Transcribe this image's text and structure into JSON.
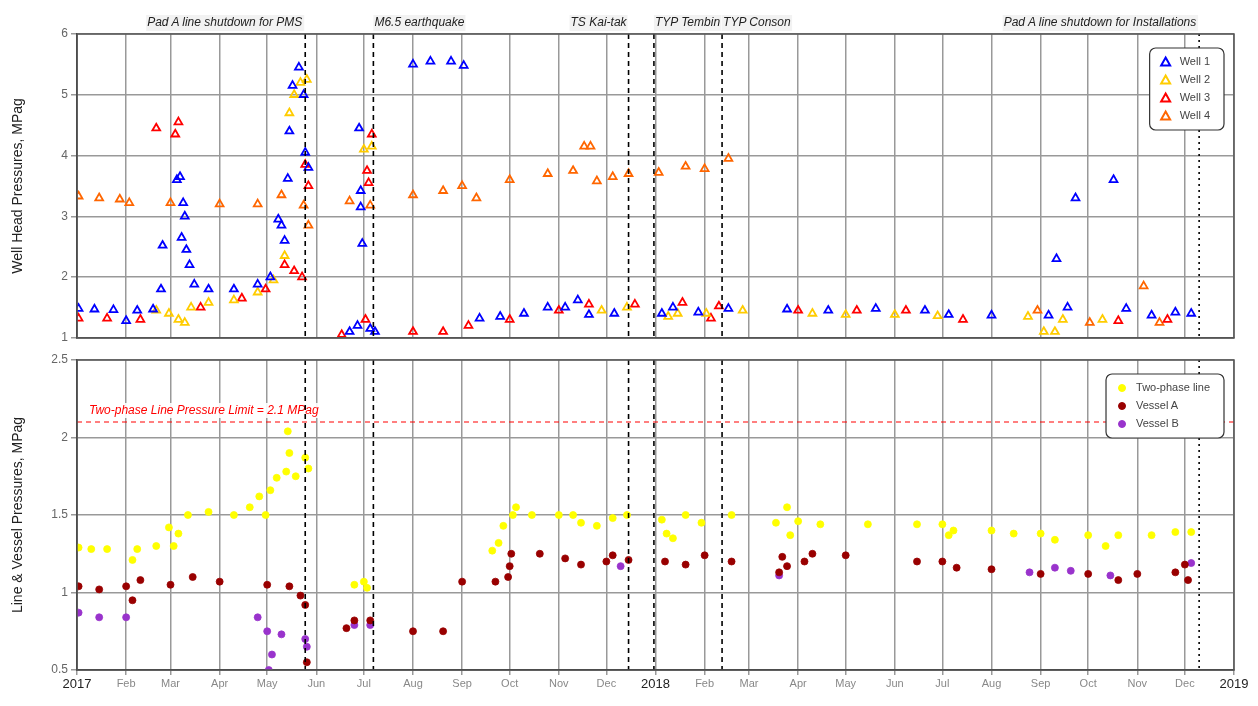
{
  "chart_data": [
    {
      "type": "scatter",
      "ylabel": "Well Head Pressures, MPag",
      "xlim": [
        "2017",
        "2019"
      ],
      "xticks": [
        {
          "value": "2017",
          "label": null
        },
        {
          "value": "2017-02",
          "label": null
        },
        {
          "value": "2017-03",
          "label": null
        },
        {
          "value": "2017-04",
          "label": null
        },
        {
          "value": "2017-05",
          "label": null
        },
        {
          "value": "2017-06",
          "label": null
        },
        {
          "value": "2017-07",
          "label": null
        },
        {
          "value": "2017-08",
          "label": null
        },
        {
          "value": "2017-09",
          "label": null
        },
        {
          "value": "2017-10",
          "label": null
        },
        {
          "value": "2017-11",
          "label": null
        },
        {
          "value": "2017-12",
          "label": null
        },
        {
          "value": "2018",
          "label": null
        },
        {
          "value": "2018-02",
          "label": null
        },
        {
          "value": "2018-03",
          "label": null
        },
        {
          "value": "2018-04",
          "label": null
        },
        {
          "value": "2018-05",
          "label": null
        },
        {
          "value": "2018-06",
          "label": null
        },
        {
          "value": "2018-07",
          "label": null
        },
        {
          "value": "2018-08",
          "label": null
        },
        {
          "value": "2018-09",
          "label": null
        },
        {
          "value": "2018-10",
          "label": null
        },
        {
          "value": "2018-11",
          "label": null
        },
        {
          "value": "2018-12",
          "label": null
        },
        {
          "value": "2019",
          "label": null
        }
      ],
      "ylim": [
        1,
        6
      ],
      "yticks": [
        1,
        2,
        3,
        4,
        5,
        6
      ],
      "tick_labels": "y",
      "grid": true,
      "legend": "top right",
      "marker": "triangle",
      "ref_lines": [
        {
          "axis": "x",
          "value": "2017-05-25",
          "label": "Pad A line shutdown for PMS",
          "line_style": "dashed",
          "color": "#000000"
        },
        {
          "axis": "x",
          "value": "2017-07-07",
          "label": "M6.5 earthquake",
          "line_style": "dashed",
          "color": "#000000"
        },
        {
          "axis": "x",
          "value": "2017-12-15",
          "label": "TS Kai-tak",
          "line_style": "dashed",
          "color": "#000000"
        },
        {
          "axis": "x",
          "value": "2017-12-31",
          "label": "TYP Tembin",
          "line_style": "dashed",
          "color": "#000000"
        },
        {
          "axis": "x",
          "value": "2018-02-12",
          "label": "TYP Conson",
          "line_style": "dashed",
          "color": "#000000"
        },
        {
          "axis": "x",
          "value": "2018-12-10",
          "label": "Pad A line shutdown for Installations",
          "line_style": "dotted",
          "color": "#000000"
        }
      ],
      "series": [
        {
          "name": "Well 1",
          "color": "#0000ff",
          "x": [
            "2017-01-02",
            "2017-01-12",
            "2017-01-24",
            "2017-02-01",
            "2017-02-08",
            "2017-02-18",
            "2017-02-23",
            "2017-02-24",
            "2017-03-05",
            "2017-03-07",
            "2017-03-09",
            "2017-03-10",
            "2017-03-08",
            "2017-03-11",
            "2017-03-13",
            "2017-03-16",
            "2017-03-25",
            "2017-04-10",
            "2017-04-25",
            "2017-05-03",
            "2017-05-08",
            "2017-05-10",
            "2017-05-12",
            "2017-05-14",
            "2017-05-15",
            "2017-05-17",
            "2017-05-21",
            "2017-05-24",
            "2017-05-25",
            "2017-05-27",
            "2017-06-22",
            "2017-06-27",
            "2017-06-28",
            "2017-06-29",
            "2017-06-29",
            "2017-06-30",
            "2017-07-05",
            "2017-07-08",
            "2017-08-01",
            "2017-08-12",
            "2017-08-25",
            "2017-09-02",
            "2017-09-12",
            "2017-09-25",
            "2017-10-10",
            "2017-10-25",
            "2017-11-05",
            "2017-11-13",
            "2017-11-20",
            "2017-12-06",
            "2018-01-05",
            "2018-01-12",
            "2018-01-28",
            "2018-02-16",
            "2018-03-25",
            "2018-04-20",
            "2018-05-20",
            "2018-06-20",
            "2018-07-05",
            "2018-08-01",
            "2018-09-06",
            "2018-09-11",
            "2018-09-18",
            "2018-09-23",
            "2018-10-17",
            "2018-10-25",
            "2018-11-10",
            "2018-11-25",
            "2018-12-05"
          ],
          "values": [
            1.48,
            1.47,
            1.46,
            1.28,
            1.45,
            1.47,
            1.8,
            2.52,
            3.6,
            3.65,
            3.22,
            3.0,
            2.65,
            2.45,
            2.2,
            1.88,
            1.8,
            1.8,
            1.88,
            2.0,
            2.95,
            2.85,
            2.6,
            3.62,
            4.4,
            5.15,
            5.45,
            5.0,
            4.05,
            3.8,
            1.1,
            1.2,
            4.45,
            3.42,
            3.15,
            2.55,
            1.15,
            1.1,
            5.5,
            5.55,
            5.55,
            5.48,
            1.32,
            1.35,
            1.4,
            1.5,
            1.5,
            1.62,
            1.38,
            1.4,
            1.4,
            1.5,
            1.42,
            1.48,
            1.47,
            1.45,
            1.48,
            1.45,
            1.38,
            1.37,
            1.37,
            2.3,
            1.5,
            3.3,
            3.6,
            1.48,
            1.37,
            1.42,
            1.4
          ]
        },
        {
          "name": "Well 2",
          "color": "#ffcc00",
          "x": [
            "2017-02-20",
            "2017-02-28",
            "2017-03-06",
            "2017-03-10",
            "2017-03-14",
            "2017-03-25",
            "2017-04-10",
            "2017-04-25",
            "2017-05-05",
            "2017-05-12",
            "2017-05-15",
            "2017-05-18",
            "2017-05-22",
            "2017-05-26",
            "2017-07-01",
            "2017-07-06",
            "2017-11-28",
            "2017-12-14",
            "2018-01-09",
            "2018-01-15",
            "2018-02-02",
            "2018-02-25",
            "2018-04-10",
            "2018-05-01",
            "2018-06-01",
            "2018-06-28",
            "2018-08-24",
            "2018-09-03",
            "2018-09-10",
            "2018-09-15",
            "2018-10-10"
          ],
          "values": [
            1.45,
            1.4,
            1.3,
            1.25,
            1.5,
            1.58,
            1.62,
            1.75,
            1.95,
            2.35,
            4.7,
            5.0,
            5.2,
            5.25,
            4.1,
            4.15,
            1.45,
            1.5,
            1.35,
            1.4,
            1.4,
            1.45,
            1.4,
            1.38,
            1.38,
            1.36,
            1.35,
            1.1,
            1.1,
            1.3,
            1.3
          ]
        },
        {
          "name": "Well 3",
          "color": "#ff0000",
          "x": [
            "2017-01-02",
            "2017-01-20",
            "2017-02-10",
            "2017-02-20",
            "2017-03-04",
            "2017-03-06",
            "2017-03-20",
            "2017-04-15",
            "2017-04-30",
            "2017-05-12",
            "2017-05-18",
            "2017-05-23",
            "2017-05-25",
            "2017-05-27",
            "2017-06-17",
            "2017-07-02",
            "2017-07-03",
            "2017-07-04",
            "2017-07-06",
            "2017-08-01",
            "2017-08-20",
            "2017-09-05",
            "2017-10-01",
            "2017-11-01",
            "2017-11-20",
            "2017-12-19",
            "2018-01-18",
            "2018-02-05",
            "2018-02-10",
            "2018-04-01",
            "2018-05-08",
            "2018-06-08",
            "2018-07-14",
            "2018-10-20",
            "2018-11-20"
          ],
          "values": [
            1.32,
            1.32,
            1.3,
            4.45,
            4.35,
            4.55,
            1.5,
            1.65,
            1.8,
            2.2,
            2.1,
            2.0,
            3.85,
            3.5,
            1.05,
            1.3,
            3.75,
            3.55,
            4.35,
            1.1,
            1.1,
            1.2,
            1.3,
            1.45,
            1.55,
            1.55,
            1.58,
            1.32,
            1.52,
            1.45,
            1.45,
            1.45,
            1.3,
            1.28,
            1.3
          ]
        },
        {
          "name": "Well 4",
          "color": "#ff6600",
          "x": [
            "2017-01-02",
            "2017-01-15",
            "2017-01-28",
            "2017-02-03",
            "2017-03-01",
            "2017-04-01",
            "2017-04-25",
            "2017-05-10",
            "2017-05-24",
            "2017-05-27",
            "2017-06-22",
            "2017-07-05",
            "2017-08-01",
            "2017-08-20",
            "2017-09-01",
            "2017-09-10",
            "2017-10-01",
            "2017-10-25",
            "2017-11-10",
            "2017-11-17",
            "2017-11-21",
            "2017-11-25",
            "2017-12-05",
            "2017-12-15",
            "2018-01-03",
            "2018-01-20",
            "2018-02-01",
            "2018-02-16",
            "2018-08-30",
            "2018-10-02",
            "2018-11-05",
            "2018-11-15"
          ],
          "values": [
            3.33,
            3.3,
            3.28,
            3.22,
            3.22,
            3.2,
            3.2,
            3.35,
            3.18,
            2.85,
            3.25,
            3.18,
            3.35,
            3.42,
            3.5,
            3.3,
            3.6,
            3.7,
            3.75,
            4.15,
            4.15,
            3.58,
            3.65,
            3.7,
            3.72,
            3.82,
            3.78,
            3.95,
            1.45,
            1.25,
            1.85,
            1.25
          ]
        }
      ]
    },
    {
      "type": "scatter",
      "ylabel": "Line & Vessel Pressures, MPag",
      "xlim": [
        "2017",
        "2019"
      ],
      "xticks": [
        "2017",
        {
          "value": "2017-02",
          "label": "Feb"
        },
        {
          "value": "2017-03",
          "label": "Mar"
        },
        {
          "value": "2017-04",
          "label": "Apr"
        },
        {
          "value": "2017-05",
          "label": "May"
        },
        {
          "value": "2017-06",
          "label": "Jun"
        },
        {
          "value": "2017-07",
          "label": "Jul"
        },
        {
          "value": "2017-08",
          "label": "Aug"
        },
        {
          "value": "2017-09",
          "label": "Sep"
        },
        {
          "value": "2017-10",
          "label": "Oct"
        },
        {
          "value": "2017-11",
          "label": "Nov"
        },
        {
          "value": "2017-12",
          "label": "Dec"
        },
        "2018",
        {
          "value": "2018-02",
          "label": "Feb"
        },
        {
          "value": "2018-03",
          "label": "Mar"
        },
        {
          "value": "2018-04",
          "label": "Apr"
        },
        {
          "value": "2018-05",
          "label": "May"
        },
        {
          "value": "2018-06",
          "label": "Jun"
        },
        {
          "value": "2018-07",
          "label": "Jul"
        },
        {
          "value": "2018-08",
          "label": "Aug"
        },
        {
          "value": "2018-09",
          "label": "Sep"
        },
        {
          "value": "2018-10",
          "label": "Oct"
        },
        {
          "value": "2018-11",
          "label": "Nov"
        },
        {
          "value": "2018-12",
          "label": "Dec"
        },
        "2019"
      ],
      "ylim": [
        0.5,
        2.5
      ],
      "yticks": [
        0.5,
        1,
        1.5,
        2,
        2.5
      ],
      "grid": true,
      "legend": "top right",
      "marker": "circle",
      "ref_lines": [
        {
          "axis": "y",
          "value": 2.1,
          "label": "Two-phase Line Pressure Limit = 2.1 MPag",
          "line_style": "dashed",
          "color": "#ff0000"
        },
        {
          "axis": "x",
          "value": "2017-05-25",
          "label": null,
          "line_style": "dashed",
          "color": "#000000"
        },
        {
          "axis": "x",
          "value": "2017-07-07",
          "label": null,
          "line_style": "dashed",
          "color": "#000000"
        },
        {
          "axis": "x",
          "value": "2017-12-15",
          "label": null,
          "line_style": "dashed",
          "color": "#000000"
        },
        {
          "axis": "x",
          "value": "2017-12-31",
          "label": null,
          "line_style": "dashed",
          "color": "#000000"
        },
        {
          "axis": "x",
          "value": "2018-02-12",
          "label": null,
          "line_style": "dashed",
          "color": "#000000"
        },
        {
          "axis": "x",
          "value": "2018-12-10",
          "label": null,
          "line_style": "dotted",
          "color": "#000000"
        }
      ],
      "series": [
        {
          "name": "Two-phase line",
          "color": "#ffff00",
          "x": [
            "2017-01-02",
            "2017-01-10",
            "2017-01-20",
            "2017-02-05",
            "2017-02-08",
            "2017-02-20",
            "2017-02-28",
            "2017-03-03",
            "2017-03-06",
            "2017-03-12",
            "2017-03-25",
            "2017-04-10",
            "2017-04-20",
            "2017-04-26",
            "2017-04-30",
            "2017-05-03",
            "2017-05-07",
            "2017-05-13",
            "2017-05-14",
            "2017-05-15",
            "2017-05-19",
            "2017-05-25",
            "2017-05-27",
            "2017-06-25",
            "2017-07-01",
            "2017-07-03",
            "2017-09-20",
            "2017-09-24",
            "2017-09-27",
            "2017-10-03",
            "2017-10-05",
            "2017-10-15",
            "2017-11-01",
            "2017-11-10",
            "2017-11-15",
            "2017-11-25",
            "2017-12-05",
            "2017-12-14",
            "2018-01-05",
            "2018-01-08",
            "2018-01-12",
            "2018-01-20",
            "2018-01-30",
            "2018-02-18",
            "2018-03-18",
            "2018-03-25",
            "2018-03-27",
            "2018-04-01",
            "2018-04-15",
            "2018-05-15",
            "2018-06-15",
            "2018-07-01",
            "2018-07-05",
            "2018-07-08",
            "2018-08-01",
            "2018-08-15",
            "2018-09-01",
            "2018-09-10",
            "2018-10-01",
            "2018-10-12",
            "2018-10-20",
            "2018-11-10",
            "2018-11-25",
            "2018-12-05"
          ],
          "values": [
            1.29,
            1.28,
            1.28,
            1.21,
            1.28,
            1.3,
            1.42,
            1.3,
            1.38,
            1.5,
            1.52,
            1.5,
            1.55,
            1.62,
            1.5,
            1.66,
            1.74,
            1.78,
            2.04,
            1.9,
            1.75,
            1.87,
            1.8,
            1.05,
            1.07,
            1.03,
            1.27,
            1.32,
            1.43,
            1.5,
            1.55,
            1.5,
            1.5,
            1.5,
            1.45,
            1.43,
            1.48,
            1.5,
            1.47,
            1.38,
            1.35,
            1.5,
            1.45,
            1.5,
            1.45,
            1.55,
            1.37,
            1.46,
            1.44,
            1.44,
            1.44,
            1.44,
            1.37,
            1.4,
            1.4,
            1.38,
            1.38,
            1.34,
            1.37,
            1.3,
            1.37,
            1.37,
            1.39,
            1.39
          ]
        },
        {
          "name": "Vessel A",
          "color": "#990000",
          "x": [
            "2017-01-02",
            "2017-01-15",
            "2017-02-01",
            "2017-02-05",
            "2017-02-10",
            "2017-03-01",
            "2017-03-15",
            "2017-04-01",
            "2017-05-01",
            "2017-05-15",
            "2017-05-22",
            "2017-05-25",
            "2017-05-26",
            "2017-06-20",
            "2017-06-25",
            "2017-07-05",
            "2017-08-01",
            "2017-08-20",
            "2017-09-01",
            "2017-09-22",
            "2017-09-30",
            "2017-10-01",
            "2017-10-02",
            "2017-10-20",
            "2017-11-05",
            "2017-11-15",
            "2017-12-01",
            "2017-12-05",
            "2017-12-15",
            "2018-01-07",
            "2018-01-20",
            "2018-02-01",
            "2018-02-18",
            "2018-03-20",
            "2018-03-22",
            "2018-03-25",
            "2018-04-05",
            "2018-04-10",
            "2018-05-01",
            "2018-06-15",
            "2018-07-01",
            "2018-07-10",
            "2018-08-01",
            "2018-09-01",
            "2018-10-01",
            "2018-10-20",
            "2018-11-01",
            "2018-11-25",
            "2018-12-01",
            "2018-12-03"
          ],
          "values": [
            1.04,
            1.02,
            1.04,
            0.95,
            1.08,
            1.05,
            1.1,
            1.07,
            1.05,
            1.04,
            0.98,
            0.92,
            0.55,
            0.77,
            0.82,
            0.82,
            0.75,
            0.75,
            1.07,
            1.07,
            1.1,
            1.17,
            1.25,
            1.25,
            1.22,
            1.18,
            1.2,
            1.24,
            1.21,
            1.2,
            1.18,
            1.24,
            1.2,
            1.13,
            1.23,
            1.17,
            1.2,
            1.25,
            1.24,
            1.2,
            1.2,
            1.16,
            1.15,
            1.12,
            1.12,
            1.08,
            1.12,
            1.13,
            1.18,
            1.08
          ]
        },
        {
          "name": "Vessel B",
          "color": "#9933cc",
          "x": [
            "2017-01-02",
            "2017-01-15",
            "2017-02-01",
            "2017-04-25",
            "2017-05-01",
            "2017-05-02",
            "2017-05-04",
            "2017-05-10",
            "2017-05-25",
            "2017-05-26",
            "2017-06-25",
            "2017-07-05",
            "2017-12-10",
            "2018-03-20",
            "2018-08-25",
            "2018-09-10",
            "2018-09-20",
            "2018-10-15",
            "2018-12-05"
          ],
          "values": [
            0.87,
            0.84,
            0.84,
            0.84,
            0.75,
            0.5,
            0.6,
            0.73,
            0.7,
            0.65,
            0.79,
            0.79,
            1.17,
            1.11,
            1.13,
            1.16,
            1.14,
            1.11,
            1.19
          ]
        }
      ]
    }
  ]
}
